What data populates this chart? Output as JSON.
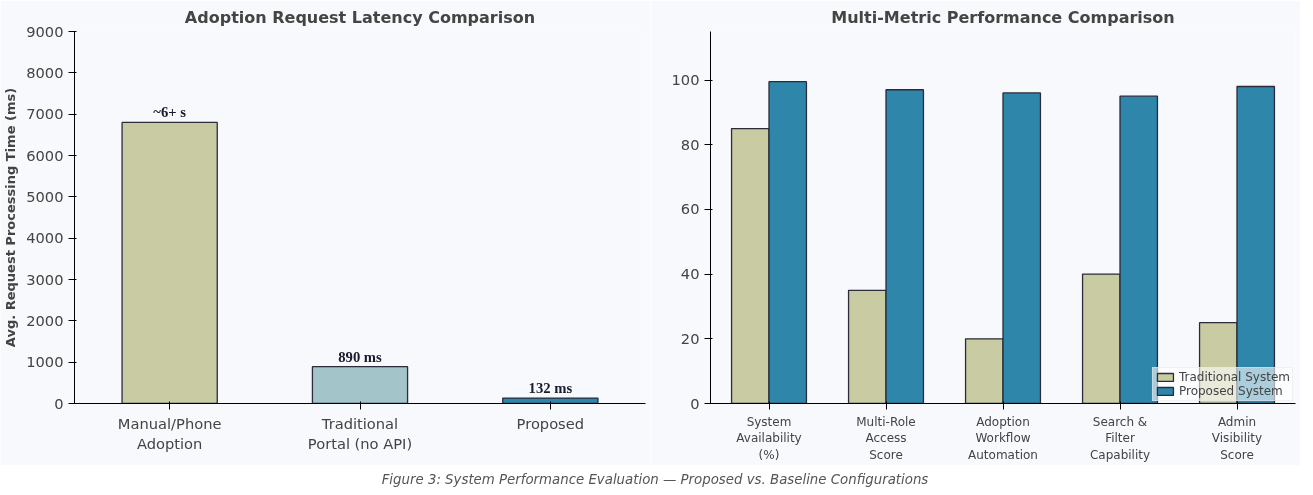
{
  "chart_data": [
    {
      "type": "bar",
      "title": "Adoption Request Latency Comparison",
      "ylabel": "Avg. Request Processing Time (ms)",
      "categories": [
        "Manual/Phone\nAdoption",
        "Traditional\nPortal (no API)",
        "Proposed"
      ],
      "values": [
        6800,
        890,
        132
      ],
      "colors": [
        "#c9cba3",
        "#a3c4c9",
        "#2e86ab"
      ],
      "value_labels": [
        "~6+ s",
        "890 ms",
        "132 ms"
      ],
      "ylim": [
        0,
        9000
      ],
      "yticks": [
        0,
        1000,
        2000,
        3000,
        4000,
        5000,
        6000,
        7000,
        8000,
        9000
      ],
      "grid": false,
      "legend": false
    },
    {
      "type": "bar",
      "title": "Multi-Metric Performance Comparison",
      "categories": [
        "System\nAvailability\n(%)",
        "Multi-Role\nAccess\nScore",
        "Adoption\nWorkflow\nAutomation",
        "Search &\nFilter\nCapability",
        "Admin\nVisibility\nScore"
      ],
      "series": [
        {
          "name": "Traditional System",
          "color": "#c9cba3",
          "values": [
            85,
            35,
            20,
            40,
            25
          ]
        },
        {
          "name": "Proposed System",
          "color": "#2e86ab",
          "values": [
            99.5,
            97,
            96,
            95,
            98
          ]
        }
      ],
      "ylim": [
        0,
        115
      ],
      "yticks": [
        0,
        20,
        40,
        60,
        80,
        100
      ],
      "grid": false,
      "legend": "bottom right",
      "annotations": [
        "Figure 3: System Performance Evaluation — Proposed vs. Baseline Configurations"
      ]
    }
  ]
}
